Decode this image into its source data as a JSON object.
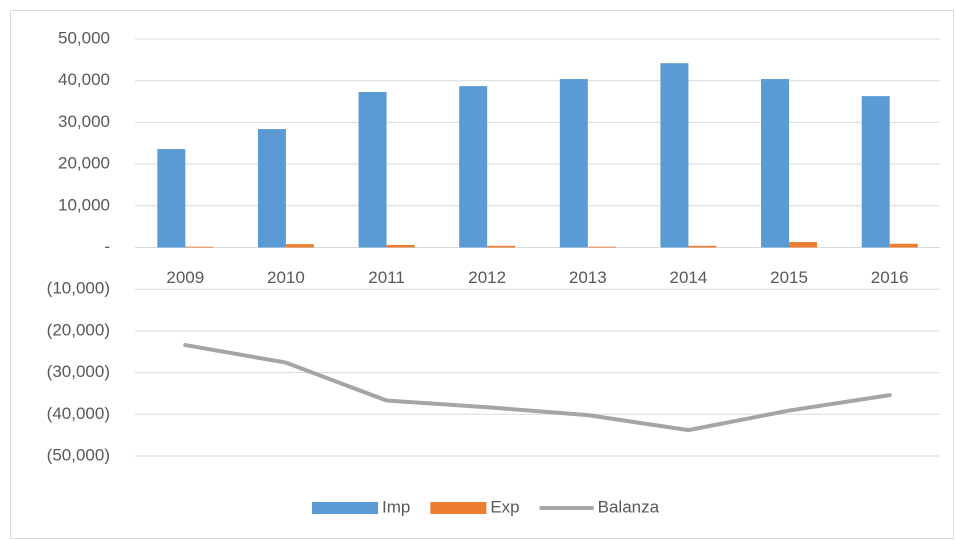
{
  "chart_data": {
    "type": "bar",
    "categories": [
      "2009",
      "2010",
      "2011",
      "2012",
      "2013",
      "2014",
      "2015",
      "2016"
    ],
    "series": [
      {
        "name": "Imp",
        "color": "#5b9bd5",
        "values": [
          23600,
          28400,
          37300,
          38700,
          40400,
          44200,
          40400,
          36300
        ]
      },
      {
        "name": "Exp",
        "color": "#ed7d31",
        "values": [
          200,
          800,
          600,
          400,
          200,
          400,
          1300,
          900
        ]
      },
      {
        "name": "Balanza",
        "color": "#a5a5a5",
        "type": "line",
        "values": [
          -23400,
          -27600,
          -36700,
          -38300,
          -40200,
          -43800,
          -39100,
          -35400
        ]
      }
    ],
    "ylim": [
      -50000,
      50000
    ],
    "yticks": [
      {
        "value": -50000,
        "label": "(50,000)"
      },
      {
        "value": -40000,
        "label": "(40,000)"
      },
      {
        "value": -30000,
        "label": "(30,000)"
      },
      {
        "value": -20000,
        "label": "(20,000)"
      },
      {
        "value": -10000,
        "label": "(10,000)"
      },
      {
        "value": 0,
        "label": "-"
      },
      {
        "value": 10000,
        "label": "10,000"
      },
      {
        "value": 20000,
        "label": "20,000"
      },
      {
        "value": 30000,
        "label": "30,000"
      },
      {
        "value": 40000,
        "label": "40,000"
      },
      {
        "value": 50000,
        "label": "50,000"
      }
    ],
    "grid": true,
    "legend": "bottom"
  }
}
